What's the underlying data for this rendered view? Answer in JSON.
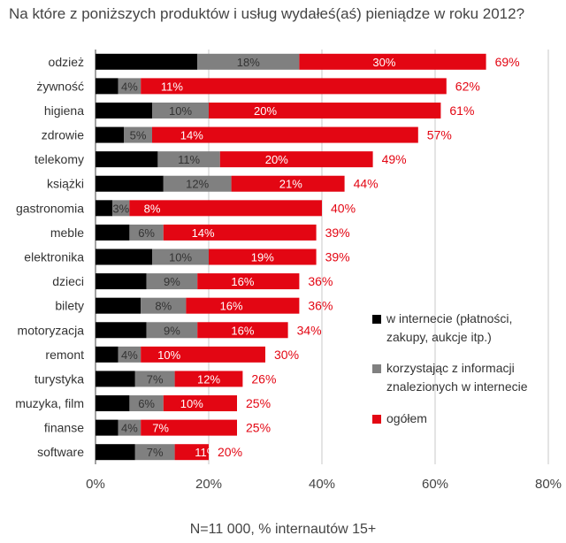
{
  "title": "Na które z poniższych produktów i usług wydałeś(aś) pieniądze w roku 2012?",
  "footnote": "N=11 000, % internautów 15+",
  "legend": {
    "items": [
      {
        "line1": "w internecie (płatności,",
        "line2": "zakupy, aukcje itp.)",
        "color": "#000000"
      },
      {
        "line1": "korzystając z informacji",
        "line2": "znalezionych w internecie",
        "color": "#808080"
      },
      {
        "line1": "ogółem",
        "line2": "",
        "color": "#e30613"
      }
    ]
  },
  "chart_data": {
    "type": "bar",
    "orientation": "horizontal",
    "stacked": "overlay",
    "categories": [
      "odzież",
      "żywność",
      "higiena",
      "zdrowie",
      "telekomy",
      "książki",
      "gastronomia",
      "meble",
      "elektronika",
      "dzieci",
      "bilety",
      "motoryzacja",
      "remont",
      "turystyka",
      "muzyka, film",
      "finanse",
      "software"
    ],
    "series": [
      {
        "name": "w internecie (płatności, zakupy, aukcje itp.)",
        "color": "#000000",
        "values": [
          18,
          4,
          10,
          5,
          11,
          12,
          3,
          6,
          10,
          9,
          8,
          9,
          4,
          7,
          6,
          4,
          7
        ],
        "labels": false
      },
      {
        "name": "korzystając z informacji znalezionych w internecie",
        "color": "#808080",
        "values": [
          18,
          4,
          10,
          5,
          11,
          12,
          3,
          6,
          10,
          9,
          8,
          9,
          4,
          7,
          6,
          4,
          7
        ],
        "labels": true
      },
      {
        "name": "",
        "color": "#e30613",
        "values": [
          30,
          11,
          20,
          14,
          20,
          21,
          8,
          14,
          19,
          16,
          16,
          16,
          10,
          12,
          10,
          7,
          11
        ],
        "labels": true
      },
      {
        "name": "ogółem",
        "color": "#e30613",
        "values": [
          69,
          62,
          61,
          57,
          49,
          44,
          40,
          39,
          39,
          36,
          36,
          34,
          30,
          26,
          25,
          25,
          20
        ],
        "labels": true
      }
    ],
    "xlim": [
      0,
      80
    ],
    "xticks": [
      0,
      20,
      40,
      60,
      80
    ],
    "xtick_labels": [
      "0%",
      "20%",
      "40%",
      "60%",
      "80%"
    ],
    "label_suffix": "%",
    "grid": "vertical",
    "legend_position": "right"
  }
}
